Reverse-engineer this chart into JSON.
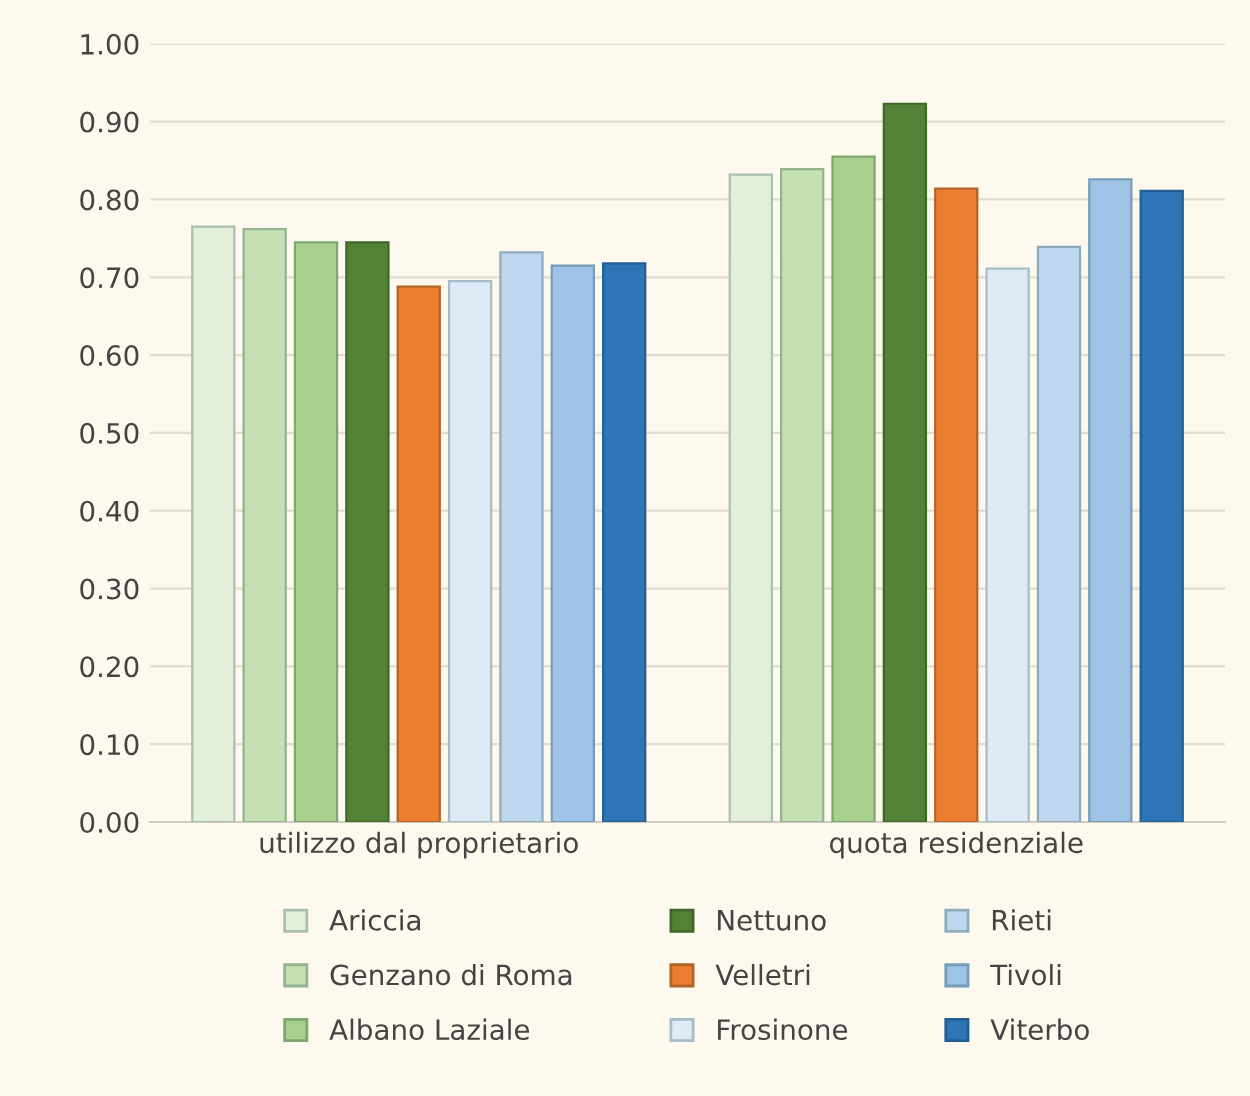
{
  "chart_data": {
    "type": "bar",
    "categories": [
      "utilizzo dal proprietario",
      "quota residenziale"
    ],
    "series": [
      {
        "name": "Ariccia",
        "color": "#e2efd9",
        "values": [
          0.765,
          0.832
        ]
      },
      {
        "name": "Genzano di Roma",
        "color": "#c5e0b3",
        "values": [
          0.762,
          0.839
        ]
      },
      {
        "name": "Albano Laziale",
        "color": "#a8d08d",
        "values": [
          0.745,
          0.855
        ]
      },
      {
        "name": "Nettuno",
        "color": "#538135",
        "values": [
          0.745,
          0.923
        ]
      },
      {
        "name": "Velletri",
        "color": "#ed7d31",
        "values": [
          0.688,
          0.814
        ]
      },
      {
        "name": "Frosinone",
        "color": "#deebf7",
        "values": [
          0.695,
          0.711
        ]
      },
      {
        "name": "Rieti",
        "color": "#bdd7ee",
        "values": [
          0.732,
          0.739
        ]
      },
      {
        "name": "Tivoli",
        "color": "#9dc3e6",
        "values": [
          0.715,
          0.826
        ]
      },
      {
        "name": "Viterbo",
        "color": "#2e75b6",
        "values": [
          0.718,
          0.811
        ]
      }
    ],
    "ylim": [
      0,
      1.0
    ],
    "yticks": [
      {
        "value": 0,
        "label": "0.00"
      },
      {
        "value": 0.1,
        "label": "0.10"
      },
      {
        "value": 0.2,
        "label": "0.20"
      },
      {
        "value": 0.3,
        "label": "0.30"
      },
      {
        "value": 0.4,
        "label": "0.40"
      },
      {
        "value": 0.5,
        "label": "0.50"
      },
      {
        "value": 0.6,
        "label": "0.60"
      },
      {
        "value": 0.7,
        "label": "0.70"
      },
      {
        "value": 0.8,
        "label": "0.80"
      },
      {
        "value": 0.9,
        "label": "0.90"
      },
      {
        "value": 1.0,
        "label": "1.00"
      }
    ],
    "grid": "y",
    "legend": "bottom"
  }
}
